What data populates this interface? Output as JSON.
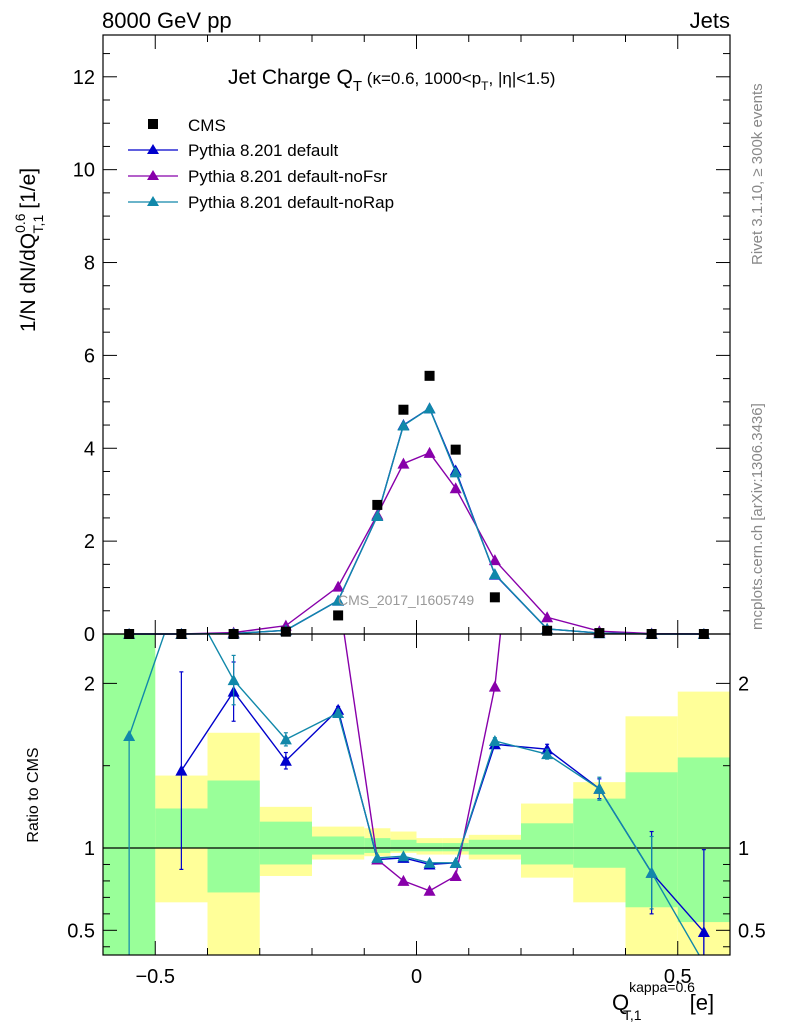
{
  "header": {
    "energy_label": "8000 GeV pp",
    "process_label": "Jets"
  },
  "side": {
    "rivet_label": "Rivet 3.1.10, ≥ 300k events",
    "mcplots_label": "mcplots.cern.ch [arXiv:1306.3436]"
  },
  "chart_data": {
    "type": "scatter",
    "title_main": "Jet Charge Q",
    "title_sub": "T",
    "title_detail": " (κ=0.6, 1000<p",
    "title_detail_sub": "T",
    "title_tail": ", |η|<1.5)",
    "analysis_label": "CMS_2017_I1605749",
    "xlabel_main": "Q",
    "xlabel_sup": "kappa=0.6",
    "xlabel_sub": "T,1",
    "xlabel_unit": "[e]",
    "ylabel_main": "1/N dN/dQ",
    "ylabel_sup": "0.6",
    "ylabel_sub": "T,1",
    "ylabel_unit": "[1/e]",
    "ratio_ylabel": "Ratio to CMS",
    "x_range": [
      -0.6,
      0.6
    ],
    "main_ylim": [
      0,
      12.9
    ],
    "ratio_ylim": [
      0.35,
      2.3
    ],
    "x_ticks": [
      -0.5,
      0,
      0.5
    ],
    "x_tick_labels": [
      "−0.5",
      "0",
      "0.5"
    ],
    "main_y_ticks": [
      0,
      2,
      4,
      6,
      8,
      10,
      12
    ],
    "main_y_tick_labels": [
      "0",
      "2",
      "4",
      "6",
      "8",
      "10",
      "12"
    ],
    "ratio_y_ticks": [
      0.5,
      1,
      2
    ],
    "ratio_y_tick_labels": [
      "0.5",
      "1",
      "2"
    ],
    "bin_edges": [
      -0.6,
      -0.5,
      -0.4,
      -0.3,
      -0.2,
      -0.1,
      -0.05,
      0,
      0.05,
      0.1,
      0.2,
      0.3,
      0.4,
      0.5,
      0.6
    ],
    "bin_centers": [
      -0.55,
      -0.45,
      -0.35,
      -0.25,
      -0.15,
      -0.075,
      -0.025,
      0.025,
      0.075,
      0.15,
      0.25,
      0.35,
      0.45,
      0.55
    ],
    "data": {
      "name": "CMS",
      "values": [
        0.0,
        0.0,
        0.0,
        0.05,
        0.4,
        2.78,
        4.83,
        5.56,
        3.97,
        0.79,
        0.07,
        0.02,
        0.0,
        0.0
      ]
    },
    "band_yellow": {
      "lo": [
        0.2,
        0.67,
        0.2,
        0.83,
        0.93,
        0.95,
        0.97,
        0.96,
        0.96,
        0.93,
        0.82,
        0.67,
        0.2,
        0.2
      ],
      "hi": [
        2.3,
        1.44,
        1.7,
        1.25,
        1.13,
        1.12,
        1.1,
        1.06,
        1.06,
        1.08,
        1.27,
        1.4,
        1.8,
        1.95
      ]
    },
    "band_green": {
      "lo": [
        0.2,
        1.0,
        0.73,
        0.9,
        0.96,
        0.97,
        0.98,
        0.98,
        0.98,
        0.96,
        0.9,
        0.88,
        0.64,
        0.55
      ],
      "hi": [
        2.3,
        1.24,
        1.41,
        1.16,
        1.07,
        1.06,
        1.05,
        1.03,
        1.03,
        1.05,
        1.15,
        1.3,
        1.46,
        1.55
      ]
    },
    "series": [
      {
        "name": "Pythia 8.201 default",
        "color": "#0000cc",
        "values": [
          0.0,
          0.0,
          0.01,
          0.08,
          0.72,
          2.54,
          4.5,
          4.86,
          3.52,
          1.28,
          0.11,
          0.02,
          0.0,
          0.0
        ],
        "ratio": [
          null,
          1.47,
          1.95,
          1.53,
          1.84,
          0.93,
          0.94,
          0.9,
          0.91,
          1.63,
          1.6,
          1.36,
          0.85,
          0.49
        ],
        "ratio_err": [
          null,
          0.6,
          0.18,
          0.05,
          0.02,
          0.01,
          0.01,
          0.01,
          0.01,
          0.02,
          0.03,
          0.06,
          0.25,
          0.5
        ]
      },
      {
        "name": "Pythia 8.201 default-noFsr",
        "color": "#8800aa",
        "values": [
          0.0,
          0.0,
          0.03,
          0.18,
          1.02,
          2.57,
          3.67,
          3.9,
          3.14,
          1.59,
          0.36,
          0.06,
          0.01,
          0.0
        ],
        "ratio": [
          null,
          5.0,
          5.0,
          3.6,
          2.55,
          0.93,
          0.8,
          0.74,
          0.83,
          1.98,
          5.0,
          5.0,
          5.0,
          5.0
        ],
        "ratio_err": [
          null,
          0,
          0,
          0,
          0,
          0,
          0,
          0,
          0,
          0,
          0,
          0,
          0,
          0
        ]
      },
      {
        "name": "Pythia 8.201 default-noRap",
        "color": "#1188aa",
        "values": [
          0.0,
          0.0,
          0.01,
          0.08,
          0.72,
          2.54,
          4.49,
          4.86,
          3.48,
          1.29,
          0.11,
          0.02,
          0.0,
          0.0
        ],
        "ratio": [
          1.68,
          2.6,
          2.02,
          1.66,
          1.82,
          0.94,
          0.95,
          0.91,
          0.91,
          1.65,
          1.57,
          1.36,
          0.85,
          0.3
        ],
        "ratio_err": [
          0.0,
          0.0,
          0.15,
          0.04,
          0.02,
          0.01,
          0.01,
          0.01,
          0.01,
          0.02,
          0.03,
          0.07,
          0.22,
          0.0
        ]
      }
    ],
    "legend_placement": "top-left"
  }
}
